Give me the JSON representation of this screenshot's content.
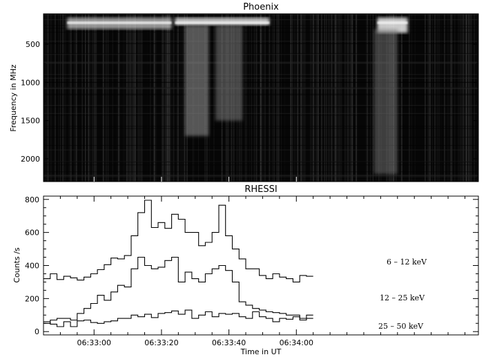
{
  "chart_data": [
    {
      "type": "heatmap",
      "title": "Phoenix",
      "ylabel": "Frequency in MHz",
      "yticks": [
        500,
        1000,
        1500,
        2000
      ],
      "ylim": [
        2300,
        100
      ],
      "xlim_seconds": [
        45,
        174
      ],
      "colormap": "grayscale",
      "features": [
        {
          "t_start": 52,
          "t_end": 83,
          "f_low": 150,
          "f_high": 300,
          "intensity": 0.75
        },
        {
          "t_start": 84,
          "t_end": 112,
          "f_low": 150,
          "f_high": 250,
          "intensity": 0.9
        },
        {
          "t_start": 144,
          "t_end": 153,
          "f_low": 150,
          "f_high": 350,
          "intensity": 0.95
        },
        {
          "t_start": 87,
          "t_end": 94,
          "f_low": 250,
          "f_high": 1700,
          "intensity": 0.45
        },
        {
          "t_start": 96,
          "t_end": 104,
          "f_low": 250,
          "f_high": 1500,
          "intensity": 0.35
        },
        {
          "t_start": 143,
          "t_end": 150,
          "f_low": 300,
          "f_high": 2200,
          "intensity": 0.3
        }
      ]
    },
    {
      "type": "line",
      "title": "RHESSI",
      "xlabel": "Time in UT",
      "ylabel": "Counts /s",
      "xticks": [
        "06:33:00",
        "06:33:20",
        "06:33:40",
        "06:34:00"
      ],
      "xtick_seconds": [
        60,
        80,
        100,
        120
      ],
      "yticks": [
        0,
        200,
        400,
        600,
        800
      ],
      "xlim_seconds": [
        45,
        174
      ],
      "ylim": [
        -20,
        820
      ],
      "step_seconds": 2,
      "series": [
        {
          "name": "6 – 12 keV",
          "color": "#000000",
          "values": [
            320,
            350,
            315,
            335,
            325,
            312,
            330,
            350,
            375,
            405,
            445,
            440,
            460,
            580,
            720,
            795,
            630,
            660,
            625,
            710,
            680,
            600,
            600,
            520,
            540,
            600,
            765,
            580,
            500,
            440,
            380,
            380,
            340,
            320,
            350,
            330,
            320,
            300,
            340,
            335
          ]
        },
        {
          "name": "12 – 25 keV",
          "color": "#000000",
          "values": [
            50,
            70,
            80,
            80,
            70,
            110,
            140,
            170,
            220,
            190,
            240,
            280,
            270,
            380,
            450,
            400,
            380,
            390,
            430,
            450,
            300,
            360,
            320,
            300,
            350,
            380,
            400,
            370,
            300,
            180,
            160,
            140,
            130,
            120,
            115,
            110,
            100,
            100,
            80,
            100
          ]
        },
        {
          "name": "25 – 50 keV",
          "color": "#000000",
          "values": [
            60,
            45,
            30,
            60,
            30,
            65,
            70,
            55,
            50,
            60,
            65,
            80,
            80,
            100,
            90,
            105,
            85,
            110,
            115,
            125,
            105,
            130,
            80,
            100,
            120,
            90,
            110,
            105,
            110,
            90,
            80,
            120,
            90,
            80,
            60,
            80,
            75,
            90,
            70,
            80
          ]
        }
      ]
    }
  ]
}
